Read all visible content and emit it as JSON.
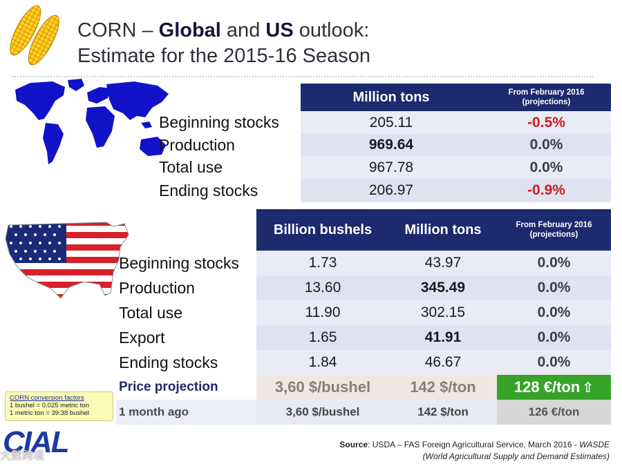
{
  "title": {
    "prefix": "CORN – ",
    "global": "Global",
    "and": " and ",
    "us": "US",
    "suffix": " outlook:",
    "line2": "Estimate for the 2015-16 Season"
  },
  "global_table": {
    "col_million_tons": "Million tons",
    "col_from_feb_line1": "From February 2016",
    "col_from_feb_line2": "(projections)",
    "rows": [
      {
        "label": "Beginning stocks",
        "value": "205.11",
        "change": "-0.5%"
      },
      {
        "label": "Production",
        "value": "969.64",
        "change": "0.0%"
      },
      {
        "label": "Total use",
        "value": "967.78",
        "change": "0.0%"
      },
      {
        "label": "Ending stocks",
        "value": "206.97",
        "change": "-0.9%"
      }
    ]
  },
  "us_table": {
    "col_bushels": "Billion bushels",
    "col_million_tons": "Million tons",
    "col_from_feb_line1": "From February 2016",
    "col_from_feb_line2": "(projections)",
    "rows": [
      {
        "label": "Beginning stocks",
        "bushels": "1.73",
        "tons": "43.97",
        "change": "0.0%"
      },
      {
        "label": "Production",
        "bushels": "13.60",
        "tons": "345.49",
        "change": "0.0%"
      },
      {
        "label": "Total use",
        "bushels": "11.90",
        "tons": "302.15",
        "change": "0.0%"
      },
      {
        "label": "Export",
        "bushels": "1.65",
        "tons": "41.91",
        "change": "0.0%"
      },
      {
        "label": "Ending stocks",
        "bushels": "1.84",
        "tons": "46.67",
        "change": "0.0%"
      }
    ],
    "price_row": {
      "label": "Price projection",
      "bushel": "3,60 $/bushel",
      "ton": "142 $/ton",
      "eur": "128 €/ton"
    },
    "month_row": {
      "label": "1 month ago",
      "bushel": "3,60 $/bushel",
      "ton": "142 $/ton",
      "eur": "126 €/ton"
    }
  },
  "note": {
    "title": "CORN conversion factors",
    "line1": "1 bushel = 0.025 metric ton",
    "line2": "1 metric ton = 39.38 bushel"
  },
  "logo": {
    "text": "CIAL"
  },
  "watermark": {
    "text": "大數跨境"
  },
  "source": {
    "label": "Source",
    "text": ": USDA – FAS Foreign Agricultural Service, March 2016 - ",
    "wasde": "WASDE",
    "line2": "(World Agricultural Supply and Demand Estimates)"
  },
  "colors": {
    "header_navy": "#1c2a6e",
    "negative_red": "#d01c1c",
    "price_green": "#38a329"
  }
}
